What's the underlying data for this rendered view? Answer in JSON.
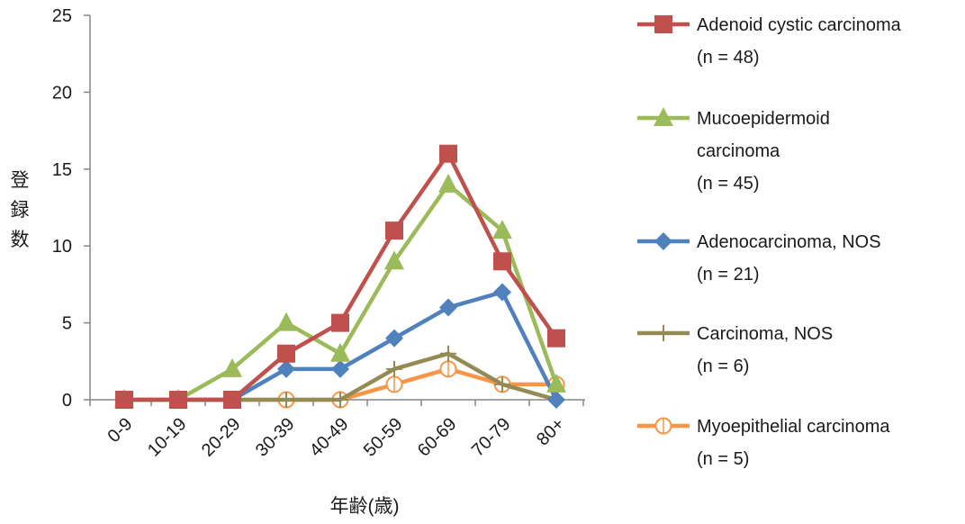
{
  "chart_data": {
    "type": "line",
    "title": "",
    "xlabel": "年齢(歳)",
    "ylabel": "登録数",
    "ylim": [
      0,
      25
    ],
    "yticks": [
      0,
      5,
      10,
      15,
      20,
      25
    ],
    "categories": [
      "0-9",
      "10-19",
      "20-29",
      "30-39",
      "40-49",
      "50-59",
      "60-69",
      "70-79",
      "80+"
    ],
    "grid": false,
    "legend_position": "right",
    "series": [
      {
        "name": "Adenoid cystic carcinoma",
        "name_line2": "(n = 48)",
        "color": "#c0504d",
        "marker": "square",
        "values": [
          0,
          0,
          0,
          3,
          5,
          11,
          16,
          9,
          4
        ]
      },
      {
        "name": "Mucoepidermoid",
        "name_line2": "carcinoma",
        "name_line3": "(n = 45)",
        "color": "#9bbb59",
        "marker": "triangle",
        "values": [
          0,
          0,
          2,
          5,
          3,
          9,
          14,
          11,
          1
        ]
      },
      {
        "name": "Adenocarcinoma, NOS",
        "name_line2": "(n = 21)",
        "color": "#4f81bd",
        "marker": "diamond",
        "values": [
          0,
          0,
          0,
          2,
          2,
          4,
          6,
          7,
          0
        ]
      },
      {
        "name": "Carcinoma, NOS",
        "name_line2": "(n = 6)",
        "color": "#948a54",
        "marker": "plus",
        "values": [
          0,
          0,
          0,
          0,
          0,
          2,
          3,
          1,
          0
        ]
      },
      {
        "name": "Myoepithelial carcinoma",
        "name_line2": "(n = 5)",
        "color": "#f79646",
        "marker": "circle-plus",
        "values": [
          0,
          0,
          0,
          0,
          0,
          1,
          2,
          1,
          1
        ]
      }
    ]
  }
}
